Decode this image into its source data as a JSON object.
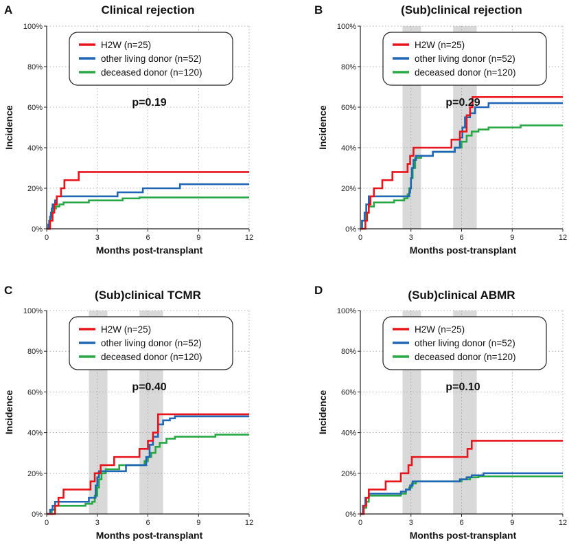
{
  "colors": {
    "h2w": "#e8141b",
    "living": "#1f66b5",
    "deceased": "#27a844",
    "shade": "#d9d9d9"
  },
  "chart_data": [
    {
      "type": "line",
      "panel": "A",
      "title": "Clinical rejection",
      "xlabel": "Months post-transplant",
      "ylabel": "Incidence",
      "xlim": [
        0,
        12
      ],
      "ylim": [
        0,
        100
      ],
      "xticks": [
        0,
        3,
        6,
        9,
        12
      ],
      "yticks": [
        "0%",
        "20%",
        "40%",
        "60%",
        "80%",
        "100%"
      ],
      "grid": true,
      "legend_position": "top-center",
      "pvalue": "p=0.19",
      "shaded_ranges": [],
      "series": [
        {
          "name": "H2W (n=25)",
          "color_key": "h2w",
          "step_points": [
            [
              0,
              0
            ],
            [
              0.2,
              4
            ],
            [
              0.35,
              8
            ],
            [
              0.45,
              12
            ],
            [
              0.6,
              16
            ],
            [
              0.85,
              20
            ],
            [
              1.05,
              24
            ],
            [
              1.9,
              28
            ],
            [
              12,
              28
            ]
          ]
        },
        {
          "name": "other living donor (n=52)",
          "color_key": "living",
          "step_points": [
            [
              0,
              0
            ],
            [
              0.1,
              2
            ],
            [
              0.15,
              4
            ],
            [
              0.2,
              6
            ],
            [
              0.25,
              8
            ],
            [
              0.3,
              10
            ],
            [
              0.35,
              12
            ],
            [
              0.5,
              14
            ],
            [
              0.6,
              16
            ],
            [
              4.2,
              18
            ],
            [
              5.7,
              20
            ],
            [
              7.9,
              22
            ],
            [
              12,
              22
            ]
          ]
        },
        {
          "name": "deceased donor (n=120)",
          "color_key": "deceased",
          "step_points": [
            [
              0,
              0
            ],
            [
              0.1,
              2
            ],
            [
              0.15,
              3
            ],
            [
              0.2,
              5
            ],
            [
              0.25,
              7
            ],
            [
              0.3,
              8
            ],
            [
              0.35,
              9
            ],
            [
              0.45,
              10
            ],
            [
              0.55,
              11
            ],
            [
              0.75,
              12
            ],
            [
              1.0,
              13
            ],
            [
              2.5,
              14
            ],
            [
              4.5,
              15
            ],
            [
              5.5,
              15.5
            ],
            [
              12,
              15.5
            ]
          ]
        }
      ]
    },
    {
      "type": "line",
      "panel": "B",
      "title": "(Sub)clinical rejection",
      "xlabel": "Months post-transplant",
      "ylabel": "Incidence",
      "xlim": [
        0,
        12
      ],
      "ylim": [
        0,
        100
      ],
      "xticks": [
        0,
        3,
        6,
        9,
        12
      ],
      "yticks": [
        "0%",
        "20%",
        "40%",
        "60%",
        "80%",
        "100%"
      ],
      "grid": true,
      "legend_position": "top-center",
      "pvalue": "p=0.29",
      "shaded_ranges": [
        [
          2.5,
          3.6
        ],
        [
          5.5,
          6.9
        ]
      ],
      "series": [
        {
          "name": "H2W (n=25)",
          "color_key": "h2w",
          "step_points": [
            [
              0,
              0
            ],
            [
              0.3,
              4
            ],
            [
              0.4,
              8
            ],
            [
              0.5,
              12
            ],
            [
              0.6,
              16
            ],
            [
              0.8,
              20
            ],
            [
              1.3,
              24
            ],
            [
              1.9,
              28
            ],
            [
              2.8,
              32
            ],
            [
              2.95,
              36
            ],
            [
              3.15,
              40
            ],
            [
              5.4,
              44
            ],
            [
              5.9,
              48
            ],
            [
              6.3,
              56
            ],
            [
              6.5,
              60
            ],
            [
              6.65,
              65
            ],
            [
              12,
              65
            ]
          ]
        },
        {
          "name": "other living donor (n=52)",
          "color_key": "living",
          "step_points": [
            [
              0,
              0
            ],
            [
              0.1,
              4
            ],
            [
              0.25,
              8
            ],
            [
              0.35,
              12
            ],
            [
              0.5,
              16
            ],
            [
              2.9,
              18
            ],
            [
              2.95,
              20
            ],
            [
              3.0,
              25
            ],
            [
              3.05,
              30
            ],
            [
              3.15,
              34
            ],
            [
              3.3,
              36
            ],
            [
              4.3,
              38
            ],
            [
              5.6,
              40
            ],
            [
              5.9,
              45
            ],
            [
              6.05,
              50
            ],
            [
              6.2,
              55
            ],
            [
              6.5,
              57
            ],
            [
              6.8,
              60
            ],
            [
              7.6,
              62
            ],
            [
              12,
              62
            ]
          ]
        },
        {
          "name": "deceased donor (n=120)",
          "color_key": "deceased",
          "step_points": [
            [
              0,
              0
            ],
            [
              0.1,
              4
            ],
            [
              0.3,
              8
            ],
            [
              0.5,
              11
            ],
            [
              0.8,
              13
            ],
            [
              2.0,
              14
            ],
            [
              2.6,
              15
            ],
            [
              2.8,
              17
            ],
            [
              2.9,
              20
            ],
            [
              3.0,
              25
            ],
            [
              3.1,
              30
            ],
            [
              3.25,
              35
            ],
            [
              3.6,
              36
            ],
            [
              4.3,
              38
            ],
            [
              5.6,
              40
            ],
            [
              6.0,
              43
            ],
            [
              6.3,
              46
            ],
            [
              6.6,
              48
            ],
            [
              7.0,
              49
            ],
            [
              7.6,
              50
            ],
            [
              9.5,
              51
            ],
            [
              12,
              51
            ]
          ]
        }
      ]
    },
    {
      "type": "line",
      "panel": "C",
      "title": "(Sub)clinical TCMR",
      "xlabel": "Months post-transplant",
      "ylabel": "Incidence",
      "xlim": [
        0,
        12
      ],
      "ylim": [
        0,
        100
      ],
      "xticks": [
        0,
        3,
        6,
        9,
        12
      ],
      "yticks": [
        "0%",
        "20%",
        "40%",
        "60%",
        "80%",
        "100%"
      ],
      "grid": true,
      "legend_position": "top-center",
      "pvalue": "p=0.40",
      "shaded_ranges": [
        [
          2.5,
          3.6
        ],
        [
          5.5,
          6.9
        ]
      ],
      "series": [
        {
          "name": "H2W (n=25)",
          "color_key": "h2w",
          "step_points": [
            [
              0,
              0
            ],
            [
              0.5,
              4
            ],
            [
              0.7,
              8
            ],
            [
              1.0,
              12
            ],
            [
              2.6,
              16
            ],
            [
              2.85,
              20
            ],
            [
              3.2,
              24
            ],
            [
              4.0,
              28
            ],
            [
              5.5,
              32
            ],
            [
              6.0,
              36
            ],
            [
              6.3,
              40
            ],
            [
              6.6,
              49
            ],
            [
              12,
              49
            ]
          ]
        },
        {
          "name": "other living donor (n=52)",
          "color_key": "living",
          "step_points": [
            [
              0,
              0
            ],
            [
              0.2,
              2
            ],
            [
              0.35,
              4
            ],
            [
              0.5,
              6
            ],
            [
              2.5,
              8
            ],
            [
              2.9,
              14
            ],
            [
              3.0,
              18
            ],
            [
              3.1,
              21
            ],
            [
              4.7,
              24
            ],
            [
              5.9,
              28
            ],
            [
              6.1,
              34
            ],
            [
              6.3,
              38
            ],
            [
              6.6,
              44
            ],
            [
              6.9,
              46
            ],
            [
              7.3,
              47
            ],
            [
              7.6,
              48
            ],
            [
              12,
              48
            ]
          ]
        },
        {
          "name": "deceased donor (n=120)",
          "color_key": "deceased",
          "step_points": [
            [
              0,
              0
            ],
            [
              0.3,
              2
            ],
            [
              0.5,
              4
            ],
            [
              2.3,
              5
            ],
            [
              2.7,
              6
            ],
            [
              2.85,
              9
            ],
            [
              3.0,
              13
            ],
            [
              3.1,
              17
            ],
            [
              3.25,
              20
            ],
            [
              3.5,
              22
            ],
            [
              4.3,
              24
            ],
            [
              5.8,
              26
            ],
            [
              6.0,
              28
            ],
            [
              6.2,
              30
            ],
            [
              6.45,
              33
            ],
            [
              6.7,
              35
            ],
            [
              7.1,
              37
            ],
            [
              7.6,
              38
            ],
            [
              10.0,
              39
            ],
            [
              12,
              39
            ]
          ]
        }
      ]
    },
    {
      "type": "line",
      "panel": "D",
      "title": "(Sub)clinical ABMR",
      "xlabel": "Months post-transplant",
      "ylabel": "Incidence",
      "xlim": [
        0,
        12
      ],
      "ylim": [
        0,
        100
      ],
      "xticks": [
        0,
        3,
        6,
        9,
        12
      ],
      "yticks": [
        "0%",
        "20%",
        "40%",
        "60%",
        "80%",
        "100%"
      ],
      "grid": true,
      "legend_position": "top-center",
      "pvalue": "p=0.10",
      "shaded_ranges": [
        [
          2.5,
          3.6
        ],
        [
          5.5,
          6.9
        ]
      ],
      "series": [
        {
          "name": "H2W (n=25)",
          "color_key": "h2w",
          "step_points": [
            [
              0,
              0
            ],
            [
              0.2,
              4
            ],
            [
              0.35,
              8
            ],
            [
              0.5,
              12
            ],
            [
              1.5,
              16
            ],
            [
              2.4,
              20
            ],
            [
              2.85,
              24
            ],
            [
              3.05,
              28
            ],
            [
              6.35,
              32
            ],
            [
              6.6,
              36
            ],
            [
              12,
              36
            ]
          ]
        },
        {
          "name": "other living donor (n=52)",
          "color_key": "living",
          "step_points": [
            [
              0,
              0
            ],
            [
              0.15,
              4
            ],
            [
              0.3,
              8
            ],
            [
              0.5,
              10
            ],
            [
              2.4,
              11
            ],
            [
              2.7,
              12
            ],
            [
              2.95,
              14
            ],
            [
              3.1,
              16
            ],
            [
              5.9,
              17
            ],
            [
              6.3,
              18
            ],
            [
              6.6,
              19
            ],
            [
              7.3,
              20
            ],
            [
              12,
              20
            ]
          ]
        },
        {
          "name": "deceased donor (n=120)",
          "color_key": "deceased",
          "step_points": [
            [
              0,
              0
            ],
            [
              0.2,
              3
            ],
            [
              0.35,
              6
            ],
            [
              0.5,
              9
            ],
            [
              2.4,
              10
            ],
            [
              2.7,
              12
            ],
            [
              2.9,
              13
            ],
            [
              3.05,
              15
            ],
            [
              3.3,
              16
            ],
            [
              6.0,
              17
            ],
            [
              6.5,
              18
            ],
            [
              7.0,
              18.5
            ],
            [
              12,
              18.5
            ]
          ]
        }
      ]
    }
  ]
}
